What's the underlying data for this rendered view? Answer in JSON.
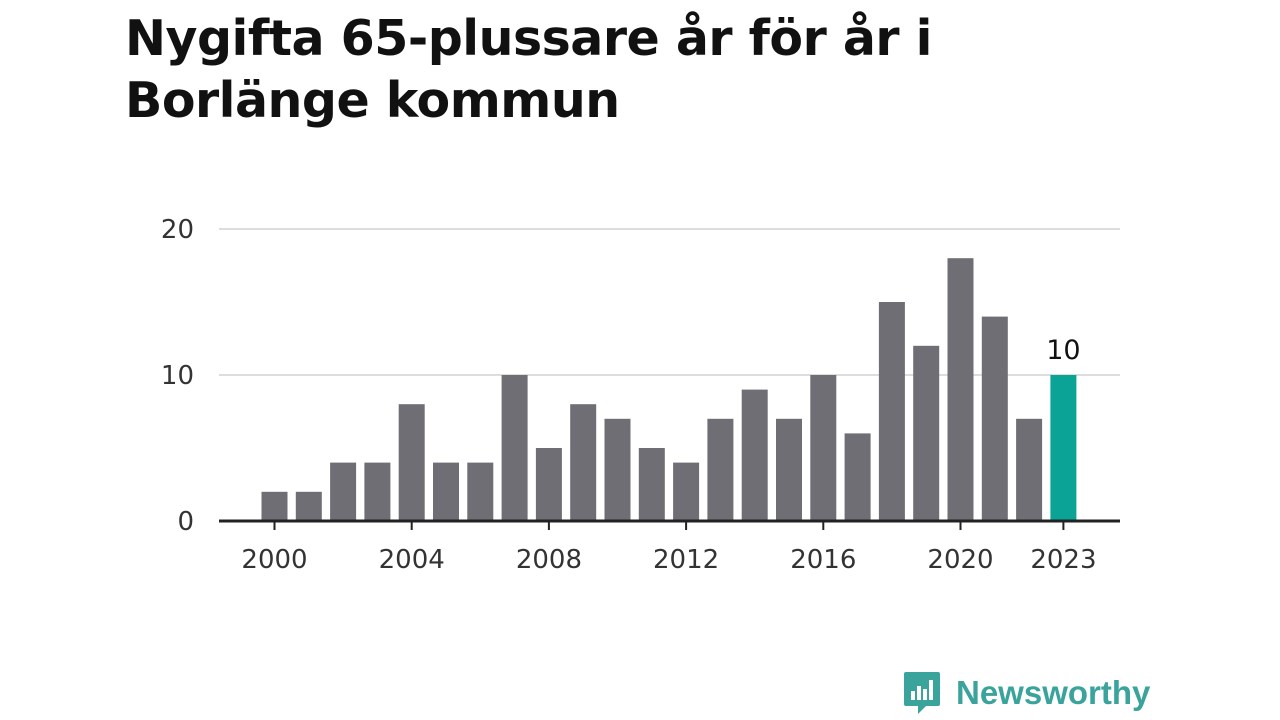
{
  "header": {
    "title": "Nygifta 65-plussare år för år i Borlänge kommun"
  },
  "chart_data": {
    "type": "bar",
    "title": "Nygifta 65-plussare år för år i Borlänge kommun",
    "xlabel": "",
    "ylabel": "",
    "categories": [
      "2000",
      "2001",
      "2002",
      "2003",
      "2004",
      "2005",
      "2006",
      "2007",
      "2008",
      "2009",
      "2010",
      "2011",
      "2012",
      "2013",
      "2014",
      "2015",
      "2016",
      "2017",
      "2018",
      "2019",
      "2020",
      "2021",
      "2022",
      "2023"
    ],
    "values": [
      2,
      2,
      4,
      4,
      8,
      4,
      4,
      10,
      5,
      8,
      7,
      5,
      4,
      7,
      9,
      7,
      10,
      6,
      15,
      12,
      18,
      14,
      7,
      10
    ],
    "highlight_category": "2023",
    "highlight_label": "10",
    "x_tick_labels": [
      "2000",
      "2004",
      "2008",
      "2012",
      "2016",
      "2020",
      "2023"
    ],
    "y_ticks": [
      "0",
      "10",
      "20"
    ],
    "ylim": [
      0,
      20
    ],
    "grid": true,
    "legend": "none",
    "colors": {
      "bar": "#6f6e74",
      "highlight": "#0aa396",
      "grid": "#dddddd",
      "axis": "#222222",
      "text": "#333333"
    }
  },
  "branding": {
    "name": "Newsworthy",
    "icon": "bar-chart-icon",
    "color": "#3aa39b"
  }
}
